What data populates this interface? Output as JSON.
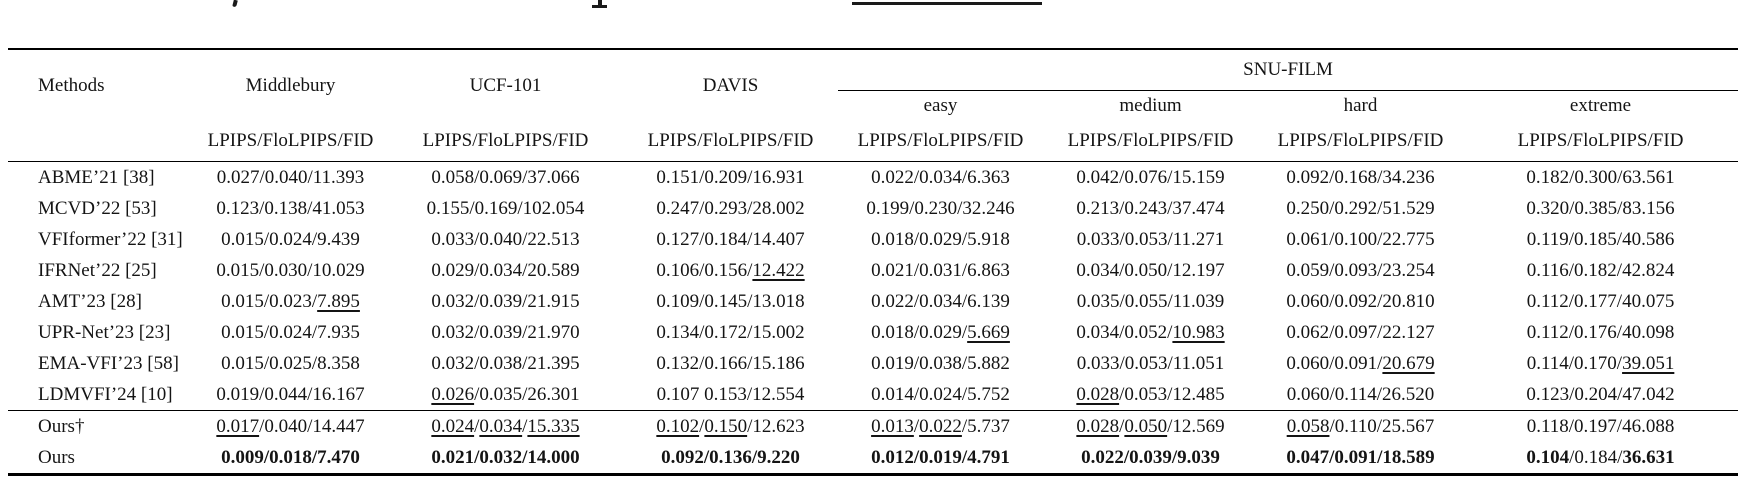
{
  "colors": {
    "background": "#ffffff",
    "text": "#141414",
    "rule": "#000000"
  },
  "table": {
    "header": {
      "methods": "Methods",
      "datasets": [
        "Middlebury",
        "UCF-101",
        "DAVIS"
      ],
      "group": {
        "label": "SNU-FILM",
        "subcolumns": [
          "easy",
          "medium",
          "hard",
          "extreme"
        ]
      },
      "metric": "LPIPS/FloLPIPS/FID"
    },
    "rows": [
      {
        "method": "ABME’21 [38]",
        "cells": [
          "0.027/0.040/11.393",
          "0.058/0.069/37.066",
          "0.151/0.209/16.931",
          "0.022/0.034/6.363",
          "0.042/0.076/15.159",
          "0.092/0.168/34.236",
          "0.182/0.300/63.561"
        ],
        "u": {},
        "b": {}
      },
      {
        "method": "MCVD’22 [53]",
        "cells": [
          "0.123/0.138/41.053",
          "0.155/0.169/102.054",
          "0.247/0.293/28.002",
          "0.199/0.230/32.246",
          "0.213/0.243/37.474",
          "0.250/0.292/51.529",
          "0.320/0.385/83.156"
        ],
        "u": {},
        "b": {}
      },
      {
        "method": "VFIformer’22 [31]",
        "cells": [
          "0.015/0.024/9.439",
          "0.033/0.040/22.513",
          "0.127/0.184/14.407",
          "0.018/0.029/5.918",
          "0.033/0.053/11.271",
          "0.061/0.100/22.775",
          "0.119/0.185/40.586"
        ],
        "u": {},
        "b": {}
      },
      {
        "method": "IFRNet’22 [25]",
        "cells": [
          "0.015/0.030/10.029",
          "0.029/0.034/20.589",
          "0.106/0.156/12.422",
          "0.021/0.031/6.863",
          "0.034/0.050/12.197",
          "0.059/0.093/23.254",
          "0.116/0.182/42.824"
        ],
        "u": {
          "2": [
            2
          ]
        },
        "b": {}
      },
      {
        "method": "AMT’23 [28]",
        "cells": [
          "0.015/0.023/7.895",
          "0.032/0.039/21.915",
          "0.109/0.145/13.018",
          "0.022/0.034/6.139",
          "0.035/0.055/11.039",
          "0.060/0.092/20.810",
          "0.112/0.177/40.075"
        ],
        "u": {
          "0": [
            2
          ]
        },
        "b": {}
      },
      {
        "method": "UPR-Net’23 [23]",
        "cells": [
          "0.015/0.024/7.935",
          "0.032/0.039/21.970",
          "0.134/0.172/15.002",
          "0.018/0.029/5.669",
          "0.034/0.052/10.983",
          "0.062/0.097/22.127",
          "0.112/0.176/40.098"
        ],
        "u": {
          "3": [
            2
          ],
          "4": [
            2
          ]
        },
        "b": {}
      },
      {
        "method": "EMA-VFI’23 [58]",
        "cells": [
          "0.015/0.025/8.358",
          "0.032/0.038/21.395",
          "0.132/0.166/15.186",
          "0.019/0.038/5.882",
          "0.033/0.053/11.051",
          "0.060/0.091/20.679",
          "0.114/0.170/39.051"
        ],
        "u": {
          "5": [
            2
          ],
          "6": [
            2
          ]
        },
        "b": {}
      },
      {
        "method": "LDMVFI’24 [10]",
        "cells": [
          "0.019/0.044/16.167",
          "0.026/0.035/26.301",
          "0.107 0.153/12.554",
          "0.014/0.024/5.752",
          "0.028/0.053/12.485",
          "0.060/0.114/26.520",
          "0.123/0.204/47.042"
        ],
        "u": {
          "1": [
            0
          ],
          "4": [
            0
          ]
        },
        "b": {}
      }
    ],
    "footer_rows": [
      {
        "method": "Ours†",
        "cells": [
          "0.017/0.040/14.447",
          "0.024/0.034/15.335",
          "0.102/0.150/12.623",
          "0.013/0.022/5.737",
          "0.028/0.050/12.569",
          "0.058/0.110/25.567",
          "0.118/0.197/46.088"
        ],
        "u": {
          "0": [
            0
          ],
          "1": [
            0,
            1,
            2
          ],
          "2": [
            0,
            1
          ],
          "3": [
            0,
            1
          ],
          "4": [
            0,
            1
          ],
          "5": [
            0
          ]
        },
        "b": {}
      },
      {
        "method": "Ours",
        "cells": [
          "0.009/0.018/7.470",
          "0.021/0.032/14.000",
          "0.092/0.136/9.220",
          "0.012/0.019/4.791",
          "0.022/0.039/9.039",
          "0.047/0.091/18.589",
          "0.104/0.184/36.631"
        ],
        "u": {},
        "b": {
          "0": [
            0,
            1,
            2
          ],
          "1": [
            0,
            1,
            2
          ],
          "2": [
            0,
            1,
            2
          ],
          "3": [
            0,
            1,
            2
          ],
          "4": [
            0,
            1,
            2
          ],
          "5": [
            0,
            1,
            2
          ],
          "6": [
            0,
            2
          ]
        }
      }
    ]
  }
}
